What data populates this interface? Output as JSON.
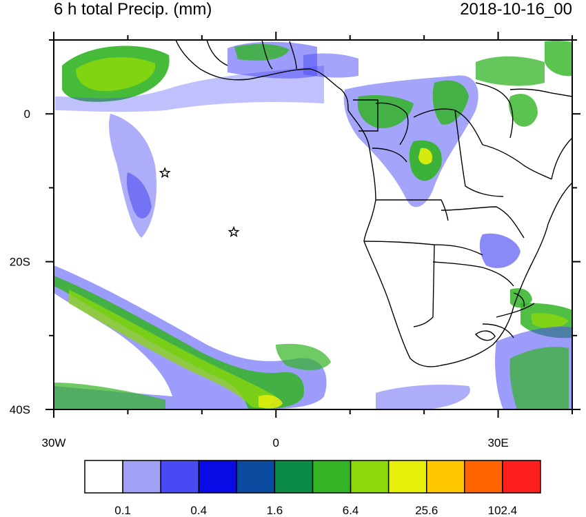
{
  "title_left": "6 h total Precip. (mm)",
  "title_right": "2018-10-16_00",
  "map": {
    "lon_range": [
      -30,
      40
    ],
    "lat_range": [
      -40,
      10
    ],
    "x_ticks": [
      {
        "value": -30,
        "label": "30W"
      },
      {
        "value": 0,
        "label": "0"
      },
      {
        "value": 30,
        "label": "30E"
      }
    ],
    "y_ticks": [
      {
        "value": 0,
        "label": "0"
      },
      {
        "value": -20,
        "label": "20S"
      },
      {
        "value": -40,
        "label": "40S"
      }
    ],
    "markers": [
      {
        "name": "star-marker-1",
        "lon": -15,
        "lat": -8
      },
      {
        "name": "star-marker-2",
        "lon": -5.7,
        "lat": -16
      }
    ]
  },
  "colorbar": {
    "colors": [
      "#ffffff",
      "#a0a0f5",
      "#4a4af5",
      "#0a0ae6",
      "#0a4ba0",
      "#0a8c46",
      "#32b424",
      "#8cd80a",
      "#e6f00a",
      "#ffc800",
      "#ff6400",
      "#ff1e1e"
    ],
    "labels": [
      "0.1",
      "0.4",
      "1.6",
      "6.4",
      "25.6",
      "102.4"
    ]
  }
}
